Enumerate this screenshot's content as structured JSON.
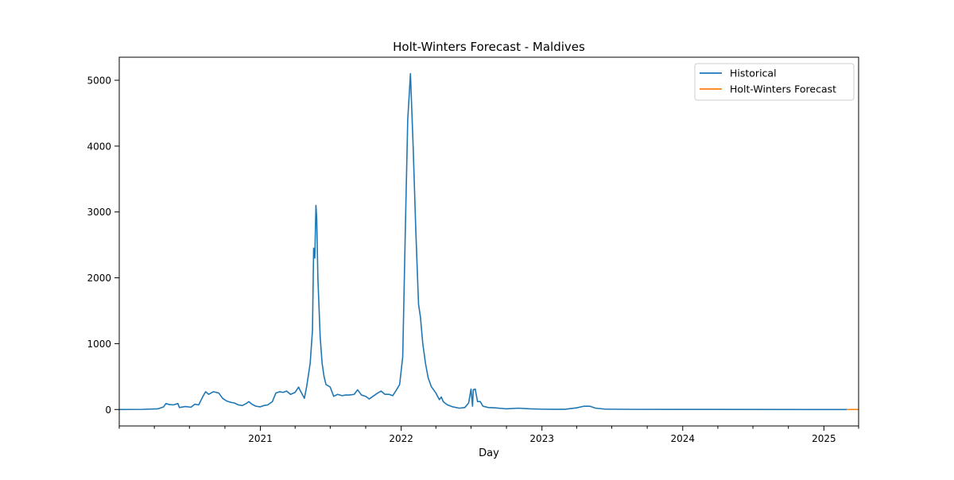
{
  "chart_data": {
    "type": "line",
    "title": "Holt-Winters Forecast - Maldives",
    "xlabel": "Day",
    "ylabel": "",
    "x_type": "date",
    "xlim": [
      "2020-01-01",
      "2025-04-01"
    ],
    "ylim": [
      -250,
      5350
    ],
    "x_ticks": [
      {
        "label": "2021",
        "date": "2021-01-01"
      },
      {
        "label": "2022",
        "date": "2022-01-01"
      },
      {
        "label": "2023",
        "date": "2023-01-01"
      },
      {
        "label": "2024",
        "date": "2024-01-01"
      },
      {
        "label": "2025",
        "date": "2025-01-01"
      }
    ],
    "y_ticks": [
      0,
      1000,
      2000,
      3000,
      4000,
      5000
    ],
    "y_tick_labels": [
      "0",
      "1000",
      "2000",
      "3000",
      "4000",
      "5000"
    ],
    "grid": false,
    "legend": "top-right",
    "series": [
      {
        "name": "Historical",
        "color": "#1f77b4",
        "points": [
          [
            "2020-01-01",
            0
          ],
          [
            "2020-03-01",
            2
          ],
          [
            "2020-04-10",
            10
          ],
          [
            "2020-04-25",
            40
          ],
          [
            "2020-05-01",
            90
          ],
          [
            "2020-05-10",
            75
          ],
          [
            "2020-05-20",
            70
          ],
          [
            "2020-06-01",
            90
          ],
          [
            "2020-06-05",
            30
          ],
          [
            "2020-06-20",
            45
          ],
          [
            "2020-07-05",
            35
          ],
          [
            "2020-07-15",
            80
          ],
          [
            "2020-07-25",
            70
          ],
          [
            "2020-08-05",
            200
          ],
          [
            "2020-08-12",
            270
          ],
          [
            "2020-08-20",
            230
          ],
          [
            "2020-09-01",
            270
          ],
          [
            "2020-09-15",
            250
          ],
          [
            "2020-09-25",
            170
          ],
          [
            "2020-10-05",
            130
          ],
          [
            "2020-10-15",
            110
          ],
          [
            "2020-10-25",
            100
          ],
          [
            "2020-11-05",
            70
          ],
          [
            "2020-11-15",
            60
          ],
          [
            "2020-11-25",
            90
          ],
          [
            "2020-12-02",
            120
          ],
          [
            "2020-12-10",
            80
          ],
          [
            "2020-12-20",
            50
          ],
          [
            "2020-12-31",
            40
          ],
          [
            "2021-01-10",
            60
          ],
          [
            "2021-01-20",
            70
          ],
          [
            "2021-02-01",
            120
          ],
          [
            "2021-02-10",
            250
          ],
          [
            "2021-02-20",
            270
          ],
          [
            "2021-03-01",
            260
          ],
          [
            "2021-03-10",
            280
          ],
          [
            "2021-03-20",
            230
          ],
          [
            "2021-04-01",
            260
          ],
          [
            "2021-04-10",
            340
          ],
          [
            "2021-04-15",
            280
          ],
          [
            "2021-04-25",
            170
          ],
          [
            "2021-05-01",
            350
          ],
          [
            "2021-05-10",
            700
          ],
          [
            "2021-05-16",
            1200
          ],
          [
            "2021-05-19",
            2450
          ],
          [
            "2021-05-22",
            2300
          ],
          [
            "2021-05-25",
            3100
          ],
          [
            "2021-05-27",
            2900
          ],
          [
            "2021-05-30",
            2000
          ],
          [
            "2021-06-05",
            1100
          ],
          [
            "2021-06-10",
            700
          ],
          [
            "2021-06-15",
            500
          ],
          [
            "2021-06-20",
            380
          ],
          [
            "2021-07-01",
            340
          ],
          [
            "2021-07-10",
            200
          ],
          [
            "2021-07-20",
            230
          ],
          [
            "2021-08-01",
            210
          ],
          [
            "2021-08-10",
            220
          ],
          [
            "2021-08-20",
            220
          ],
          [
            "2021-09-01",
            230
          ],
          [
            "2021-09-10",
            300
          ],
          [
            "2021-09-20",
            220
          ],
          [
            "2021-10-01",
            200
          ],
          [
            "2021-10-10",
            160
          ],
          [
            "2021-10-20",
            200
          ],
          [
            "2021-11-01",
            250
          ],
          [
            "2021-11-10",
            280
          ],
          [
            "2021-11-20",
            230
          ],
          [
            "2021-12-01",
            230
          ],
          [
            "2021-12-10",
            210
          ],
          [
            "2021-12-20",
            300
          ],
          [
            "2021-12-28",
            380
          ],
          [
            "2022-01-05",
            800
          ],
          [
            "2022-01-12",
            2800
          ],
          [
            "2022-01-18",
            4400
          ],
          [
            "2022-01-25",
            5100
          ],
          [
            "2022-02-01",
            4000
          ],
          [
            "2022-02-08",
            2700
          ],
          [
            "2022-02-15",
            1600
          ],
          [
            "2022-02-20",
            1400
          ],
          [
            "2022-02-26",
            1000
          ],
          [
            "2022-03-05",
            700
          ],
          [
            "2022-03-12",
            480
          ],
          [
            "2022-03-20",
            350
          ],
          [
            "2022-04-01",
            250
          ],
          [
            "2022-04-10",
            150
          ],
          [
            "2022-04-15",
            190
          ],
          [
            "2022-04-20",
            120
          ],
          [
            "2022-05-01",
            70
          ],
          [
            "2022-05-15",
            40
          ],
          [
            "2022-06-01",
            20
          ],
          [
            "2022-06-15",
            30
          ],
          [
            "2022-06-25",
            100
          ],
          [
            "2022-07-01",
            310
          ],
          [
            "2022-07-05",
            50
          ],
          [
            "2022-07-07",
            300
          ],
          [
            "2022-07-12",
            310
          ],
          [
            "2022-07-18",
            120
          ],
          [
            "2022-07-25",
            120
          ],
          [
            "2022-08-01",
            50
          ],
          [
            "2022-08-15",
            30
          ],
          [
            "2022-09-01",
            25
          ],
          [
            "2022-10-01",
            10
          ],
          [
            "2022-11-01",
            20
          ],
          [
            "2022-12-01",
            10
          ],
          [
            "2023-01-01",
            5
          ],
          [
            "2023-02-01",
            3
          ],
          [
            "2023-03-01",
            3
          ],
          [
            "2023-04-01",
            25
          ],
          [
            "2023-04-20",
            50
          ],
          [
            "2023-05-05",
            50
          ],
          [
            "2023-05-20",
            20
          ],
          [
            "2023-06-15",
            5
          ],
          [
            "2023-09-01",
            2
          ],
          [
            "2024-01-01",
            1
          ],
          [
            "2025-01-01",
            0
          ],
          [
            "2025-03-01",
            0
          ]
        ]
      },
      {
        "name": "Holt-Winters Forecast",
        "color": "#ff7f0e",
        "points": [
          [
            "2025-03-01",
            0
          ],
          [
            "2025-04-01",
            0
          ]
        ]
      }
    ]
  }
}
